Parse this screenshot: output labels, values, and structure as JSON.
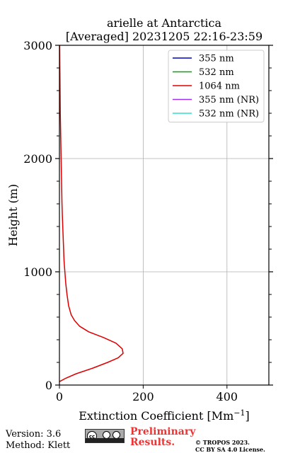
{
  "chart_data": {
    "type": "line",
    "title": [
      "arielle at Antarctica",
      "[Averaged] 20231205 22:16-23:59"
    ],
    "xlabel": "Extinction Coefficient [Mm",
    "xlabel_sup": "−1",
    "xlabel_end": "]",
    "ylabel": "Height (m)",
    "xlim": [
      0,
      500
    ],
    "ylim": [
      0,
      3000
    ],
    "xticks": [
      0,
      200,
      400
    ],
    "xtick_labels": [
      "0",
      "200",
      "400"
    ],
    "yticks": [
      0,
      1000,
      2000,
      3000
    ],
    "ytick_labels": [
      "0",
      "1000",
      "2000",
      "3000"
    ],
    "grid": true,
    "legend_position": "top-right",
    "series": [
      {
        "name": "355 nm",
        "color": "#0000cc",
        "x": [],
        "y": []
      },
      {
        "name": "532 nm",
        "color": "#00aa00",
        "x": [],
        "y": []
      },
      {
        "name": "1064 nm",
        "color": "#dd0000",
        "x": [
          0,
          15,
          40,
          80,
          115,
          140,
          152,
          150,
          135,
          105,
          70,
          48,
          36,
          28,
          22,
          18,
          15,
          13,
          11,
          10,
          9,
          8,
          7,
          6,
          5,
          4,
          3,
          2,
          1.5,
          1,
          0.5
        ],
        "y": [
          30,
          60,
          100,
          150,
          200,
          240,
          280,
          320,
          370,
          420,
          470,
          520,
          570,
          620,
          700,
          800,
          900,
          1000,
          1100,
          1200,
          1300,
          1400,
          1500,
          1600,
          1800,
          2000,
          2200,
          2400,
          2600,
          2800,
          3000
        ]
      },
      {
        "name": "355 nm (NR)",
        "color": "#9933ee",
        "x": [],
        "y": []
      },
      {
        "name": "532 nm (NR)",
        "color": "#33ddcc",
        "x": [],
        "y": []
      }
    ]
  },
  "footer": {
    "version": "Version: 3.6",
    "method": "Method: Klett",
    "license_badge": "cc BY SA",
    "preliminary": [
      "Preliminary",
      "Results."
    ],
    "copyright": [
      "© TROPOS 2023.",
      "CC BY SA 4.0 License."
    ]
  }
}
